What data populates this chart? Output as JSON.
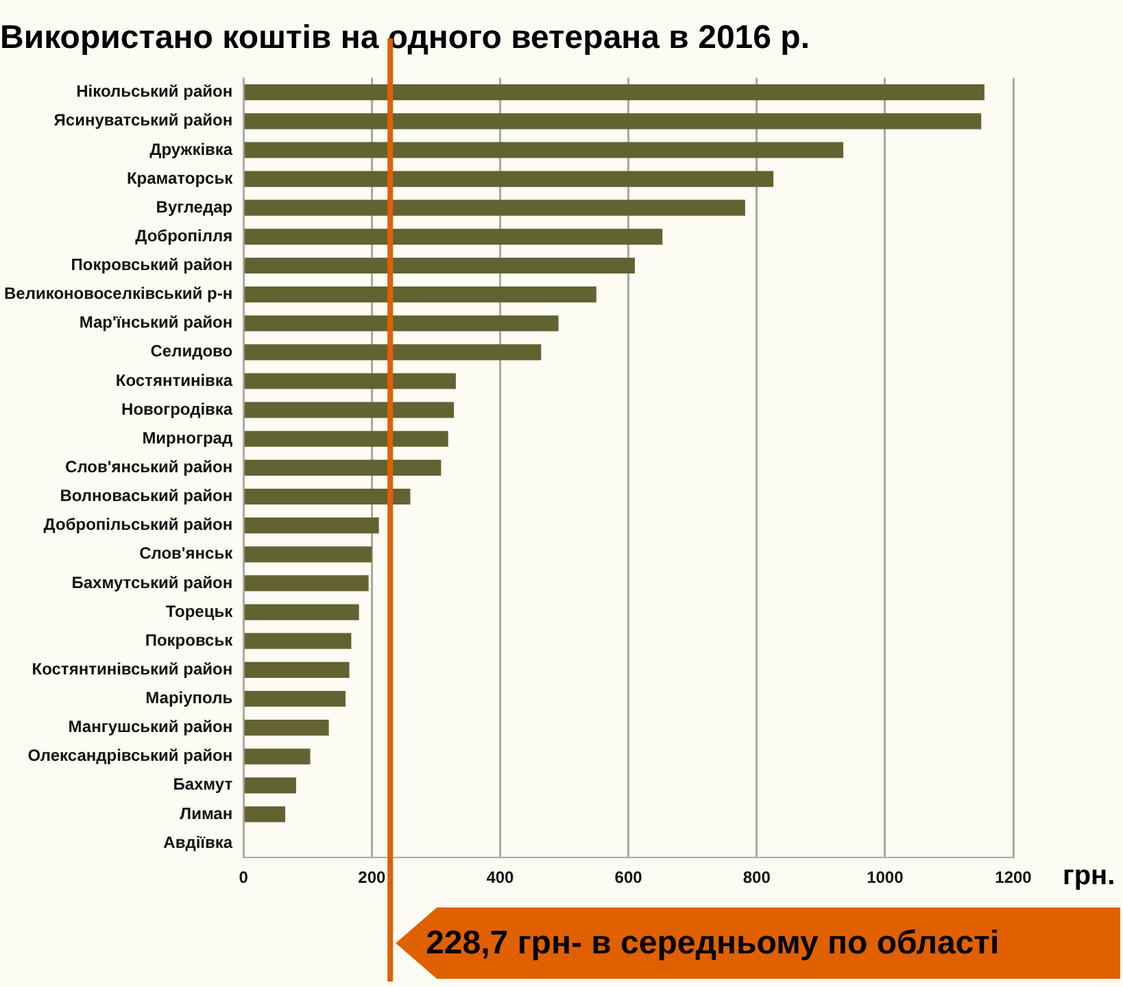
{
  "chart_data": {
    "type": "bar",
    "orientation": "horizontal",
    "title": "Використано коштів на одного ветерана в 2016 р.",
    "xlabel": "грн.",
    "categories": [
      "Нікольський район",
      "Ясинуватський район",
      "Дружківка",
      "Краматорськ",
      "Вугледар",
      "Добропілля",
      "Покровський район",
      "Великоновоселківський р-н",
      "Мар'їнський район",
      "Селидово",
      "Костянтинівка",
      "Новогродівка",
      "Мирноград",
      "Слов'янський район",
      "Волноваський район",
      "Добропільський район",
      "Слов'янськ",
      "Бахмутський район",
      "Торецьк",
      "Покровськ",
      "Костянтинівський район",
      "Маріуполь",
      "Мангушський район",
      "Олександрівський район",
      "Бахмут",
      "Лиман",
      "Авдіївка"
    ],
    "values": [
      1155,
      1150,
      935,
      826,
      782,
      653,
      610,
      550,
      491,
      464,
      331,
      328,
      319,
      308,
      260,
      211,
      200,
      195,
      180,
      168,
      165,
      159,
      133,
      104,
      82,
      65,
      0
    ],
    "color": "#636331",
    "xlim": [
      0,
      1200
    ],
    "xticks": [
      0,
      200,
      400,
      600,
      800,
      1000,
      1200
    ],
    "grid": "x",
    "legend": false,
    "ref_lines": [
      {
        "axis": "x",
        "value": 228.7,
        "label": "228,7 грн- в середньому по області",
        "color": "#e06000"
      }
    ]
  }
}
